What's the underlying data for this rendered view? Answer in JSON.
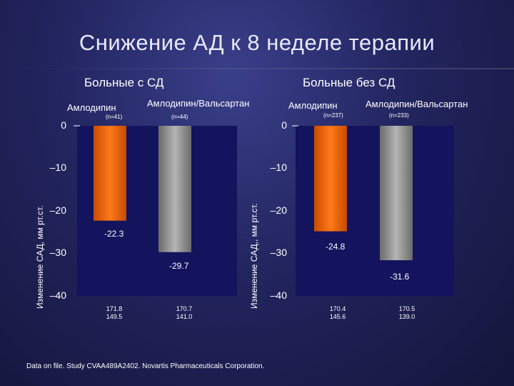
{
  "title": "Снижение АД к 8 неделе терапии",
  "footnote": "Data on file. Study CVAA489A2402. Novartis Pharmaceuticals Corporation.",
  "colors": {
    "amlodipine": "#ff6a00",
    "combo": "#9a9a9a",
    "plot_bg": "#13135e"
  },
  "chart_data": [
    {
      "type": "bar",
      "title": "Больные с СД",
      "ylabel": "Изменение САД, мм рт.ст.",
      "ylim": [
        -40,
        0
      ],
      "yticks": [
        "0",
        "–10",
        "–20",
        "–30",
        "–40"
      ],
      "categories": [
        "Амлодипин",
        "Амлодипин/Вальсартан"
      ],
      "n_labels": [
        "(n=41)",
        "(n=44)"
      ],
      "values": [
        -22.3,
        -29.7
      ],
      "value_labels": [
        "-22.3",
        "-29.7"
      ],
      "baseline": [
        [
          "171.8",
          "149.5"
        ],
        [
          "170.7",
          "141.0"
        ]
      ]
    },
    {
      "type": "bar",
      "title": "Больные без СД",
      "ylabel": "Изменение САД,, мм рт.ст.",
      "ylim": [
        -40,
        0
      ],
      "yticks": [
        "0",
        "–10",
        "–20",
        "–30",
        "–40"
      ],
      "categories": [
        "Амлодипин",
        "Амлодипин/Вальсартан"
      ],
      "n_labels": [
        "(n=237)",
        "(n=233)"
      ],
      "values": [
        -24.8,
        -31.6
      ],
      "value_labels": [
        "-24.8",
        "-31.6"
      ],
      "baseline": [
        [
          "170.4",
          "145.6"
        ],
        [
          "170.5",
          "139.0"
        ]
      ]
    }
  ]
}
